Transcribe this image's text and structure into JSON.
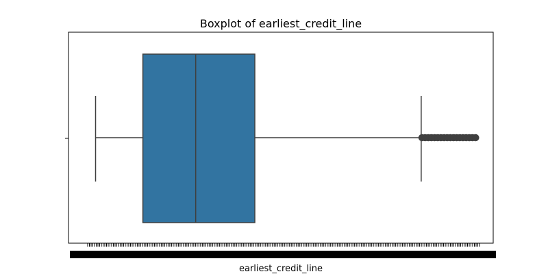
{
  "chart_data": {
    "type": "boxplot",
    "title": "Boxplot of earliest_credit_line",
    "xlabel": "earliest_credit_line",
    "ylabel": "",
    "orientation": "horizontal",
    "grid": false,
    "color": "#3274a1",
    "x_tick_labels_legible": false,
    "xlim": [
      -10,
      480
    ],
    "stats": {
      "whisker_low": 0,
      "q1": 60,
      "median": 127,
      "q3": 202,
      "whisker_high": 413
    },
    "outliers": {
      "from": 414,
      "to": 498,
      "step": 4
    }
  }
}
